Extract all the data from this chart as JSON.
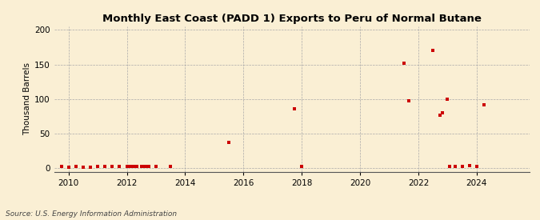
{
  "title": "Monthly East Coast (PADD 1) Exports to Peru of Normal Butane",
  "ylabel": "Thousand Barrels",
  "source": "Source: U.S. Energy Information Administration",
  "background_color": "#faefd4",
  "marker_color": "#cc0000",
  "xlim": [
    2009.5,
    2025.8
  ],
  "ylim": [
    -5,
    205
  ],
  "yticks": [
    0,
    50,
    100,
    150,
    200
  ],
  "xticks": [
    2010,
    2012,
    2014,
    2016,
    2018,
    2020,
    2022,
    2024
  ],
  "data_points": [
    [
      2009.75,
      2
    ],
    [
      2010.0,
      1
    ],
    [
      2010.25,
      2
    ],
    [
      2010.5,
      1
    ],
    [
      2010.75,
      1
    ],
    [
      2011.0,
      3
    ],
    [
      2011.25,
      2
    ],
    [
      2011.5,
      2
    ],
    [
      2011.75,
      2
    ],
    [
      2012.0,
      3
    ],
    [
      2012.08,
      2
    ],
    [
      2012.17,
      2
    ],
    [
      2012.25,
      3
    ],
    [
      2012.33,
      2
    ],
    [
      2012.5,
      2
    ],
    [
      2012.58,
      2
    ],
    [
      2012.67,
      2
    ],
    [
      2012.75,
      3
    ],
    [
      2013.0,
      2
    ],
    [
      2013.5,
      2
    ],
    [
      2015.5,
      37
    ],
    [
      2017.75,
      86
    ],
    [
      2018.0,
      2
    ],
    [
      2021.5,
      152
    ],
    [
      2021.67,
      97
    ],
    [
      2022.5,
      170
    ],
    [
      2022.75,
      76
    ],
    [
      2022.83,
      80
    ],
    [
      2023.0,
      100
    ],
    [
      2023.08,
      2
    ],
    [
      2023.25,
      2
    ],
    [
      2023.5,
      2
    ],
    [
      2023.75,
      4
    ],
    [
      2024.0,
      2
    ],
    [
      2024.25,
      92
    ]
  ],
  "title_fontsize": 9.5,
  "tick_fontsize": 7.5,
  "ylabel_fontsize": 7.5,
  "source_fontsize": 6.5,
  "marker_size": 8
}
